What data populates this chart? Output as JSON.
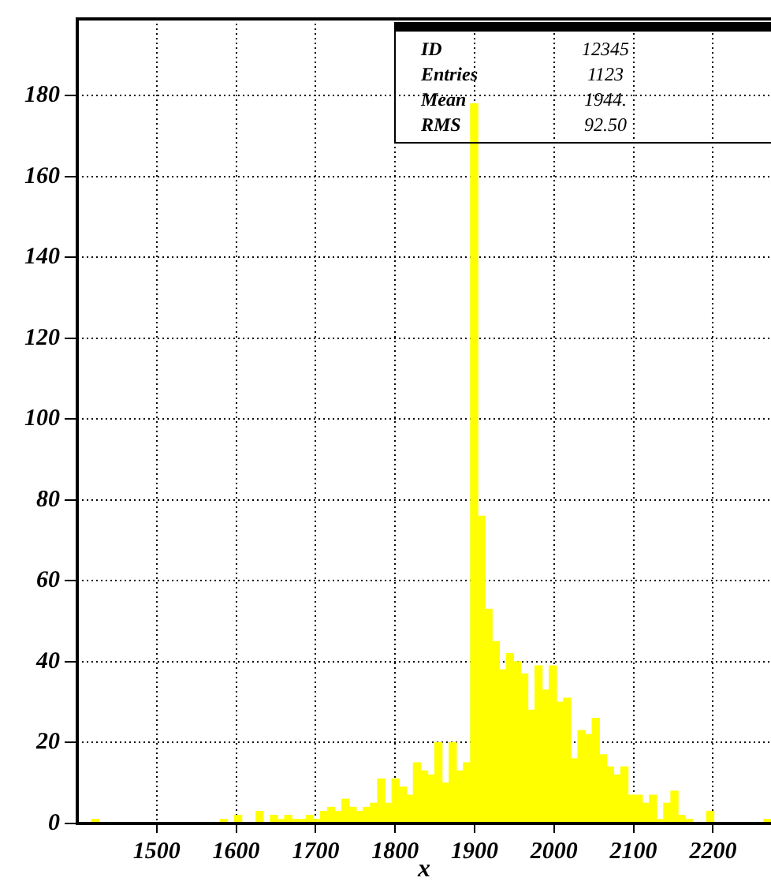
{
  "chart_data": {
    "type": "histogram",
    "xlabel": "x",
    "bins": [
      1400,
      1409,
      1418,
      1427,
      1436,
      1445,
      1454,
      1463,
      1472,
      1481,
      1490,
      1499,
      1508,
      1517,
      1526,
      1535,
      1544,
      1553,
      1562,
      1571,
      1580,
      1589,
      1598,
      1607,
      1616,
      1625,
      1634,
      1643,
      1652,
      1661,
      1670,
      1679,
      1688,
      1697,
      1706,
      1715,
      1724,
      1733,
      1742,
      1751,
      1760,
      1769,
      1778,
      1787,
      1796,
      1805,
      1814,
      1823,
      1832,
      1841,
      1850,
      1859,
      1868,
      1877,
      1886,
      1895,
      1904,
      1913,
      1922,
      1931,
      1940,
      1949,
      1958,
      1967,
      1976,
      1985,
      1994,
      2003,
      2012,
      2021,
      2030,
      2039,
      2048,
      2057,
      2066,
      2075,
      2084,
      2093,
      2102,
      2111,
      2120,
      2129,
      2138,
      2147,
      2156,
      2165,
      2174,
      2183,
      2192,
      2201,
      2210,
      2219,
      2228,
      2237,
      2246,
      2255,
      2264,
      2273
    ],
    "values": [
      0,
      0,
      1,
      0,
      0,
      0,
      0,
      0,
      0,
      0,
      0,
      0,
      0,
      0,
      0,
      0,
      0,
      0,
      0,
      0,
      1,
      0,
      2,
      0,
      0,
      3,
      0,
      2,
      1,
      2,
      1,
      1,
      2,
      1,
      3,
      4,
      3,
      6,
      4,
      3,
      4,
      5,
      11,
      5,
      11,
      9,
      7,
      15,
      13,
      12,
      20,
      10,
      20,
      13,
      15,
      178,
      76,
      53,
      45,
      38,
      42,
      40,
      37,
      28,
      39,
      33,
      39,
      30,
      31,
      16,
      23,
      22,
      26,
      17,
      14,
      12,
      14,
      7,
      7,
      5,
      7,
      1,
      5,
      8,
      2,
      1,
      0,
      0,
      3,
      0,
      0,
      0,
      0,
      0,
      0,
      0,
      1
    ],
    "color": "#ffff00",
    "xlim": [
      1400,
      2273
    ],
    "xticks": [
      1500,
      1600,
      1700,
      1800,
      1900,
      2000,
      2100,
      2200
    ],
    "ylim": [
      0,
      199
    ],
    "yticks": [
      0,
      20,
      40,
      60,
      80,
      100,
      120,
      140,
      160,
      180
    ],
    "grid": true,
    "annotations": [
      "ID",
      "12345",
      "Entries",
      "1123",
      "Mean",
      "1944.",
      "RMS",
      "92.50"
    ]
  }
}
